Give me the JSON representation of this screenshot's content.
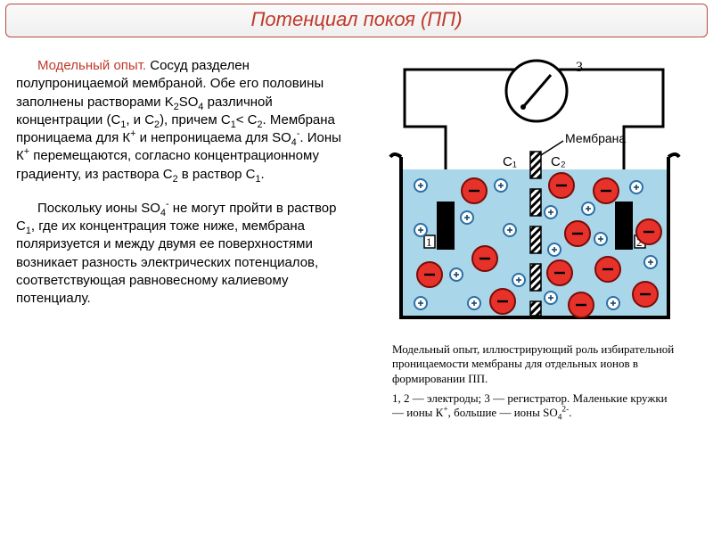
{
  "title": "Потенциал покоя (ПП)",
  "paragraph1": {
    "lead": "Модельный опыт.",
    "rest_html": " Сосуд разделен полупроницаемой мембраной. Обе его половины заполнены растворами K<sub>2</sub>SO<sub>4</sub> различной концентрации (C<sub>1</sub>, и C<sub>2</sub>), причем C<sub>1</sub>&lt; C<sub>2</sub>. Мембрана проницаема для К<sup>+</sup> и непроницаема для SO<sub>4</sub><sup>-</sup>. Ионы К<sup>+</sup> перемещаются, согласно концентрационному градиенту, из раствора C<sub>2</sub> в раствор C<sub>1</sub>."
  },
  "paragraph2_html": "Поскольку ионы SO<sub>4</sub><sup>-</sup> не могут пройти в раствор C<sub>1</sub>, где их концентрация тоже ниже, мембрана поляризуется и между двумя ее поверхностями возникает разность электрических потенциалов, соответствующая равновесному калиевому потенциалу.",
  "figure": {
    "labels": {
      "membrane": "Мембрана",
      "c1": "C₁",
      "c2": "C₂",
      "one": "1",
      "two": "2",
      "three": "3"
    },
    "colors": {
      "water": "#a9d6e8",
      "vessel_stroke": "#000000",
      "big_ion_fill": "#e6322a",
      "big_ion_stroke": "#7a0c07",
      "small_ion_fill": "#ffffff",
      "small_ion_stroke": "#2e6fa7",
      "electrode_fill": "#000000",
      "gauge_stroke": "#000000"
    },
    "caption1_html": "Модельный опыт, иллюстрирующий роль избирательной проницаемости мембраны для отдельных ионов в формировании ПП.",
    "caption2_html": "1, 2 — электроды; 3 — регистратор. Маленькие кружки — ионы К<sup>+</sup>, большие — ионы SO<sub>4</sub><sup>2-</sup>."
  }
}
